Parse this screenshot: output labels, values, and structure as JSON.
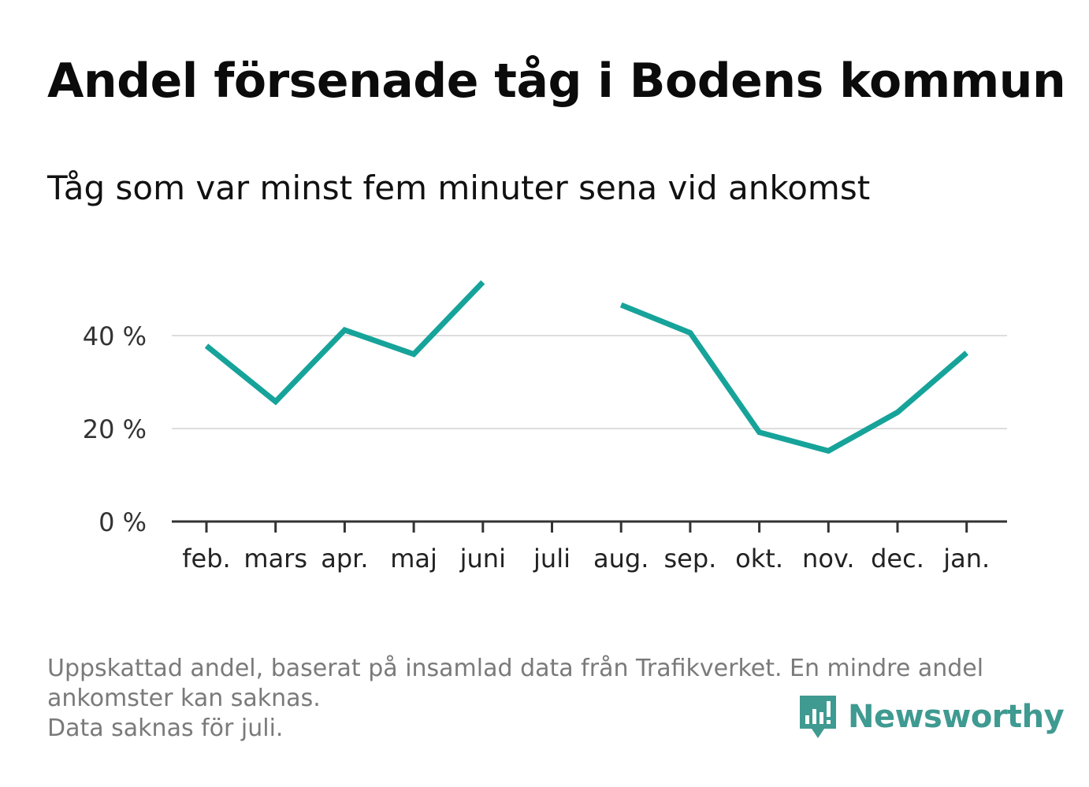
{
  "chart_data": {
    "type": "line",
    "title": "Andel försenade tåg i Bodens kommun",
    "subtitle": "Tåg som var minst fem minuter sena vid ankomst",
    "categories": [
      "feb.",
      "mars",
      "apr.",
      "maj",
      "juni",
      "juli",
      "aug.",
      "sep.",
      "okt.",
      "nov.",
      "dec.",
      "jan."
    ],
    "series": [
      {
        "values": [
          37.8,
          25.8,
          41.2,
          36.0,
          51.5,
          null,
          46.6,
          40.6,
          19.2,
          15.2,
          23.5,
          36.3
        ]
      }
    ],
    "ylim": [
      0,
      55
    ],
    "yticks": [
      0,
      20,
      40
    ],
    "ytick_labels": [
      "0 %",
      "20 %",
      "40 %"
    ],
    "grid": true,
    "line_color": "#16a39a",
    "grid_color": "#dddddd",
    "axis_color": "#333333"
  },
  "footnote": {
    "line1": "Uppskattad andel, baserat på insamlad data från Trafikverket. En mindre andel",
    "line2": "ankomster kan saknas.",
    "line3": "Data saknas för juli."
  },
  "brand": {
    "name": "Newsworthy",
    "icon": "newsworthy-logo-icon",
    "color": "#3f9a91"
  }
}
